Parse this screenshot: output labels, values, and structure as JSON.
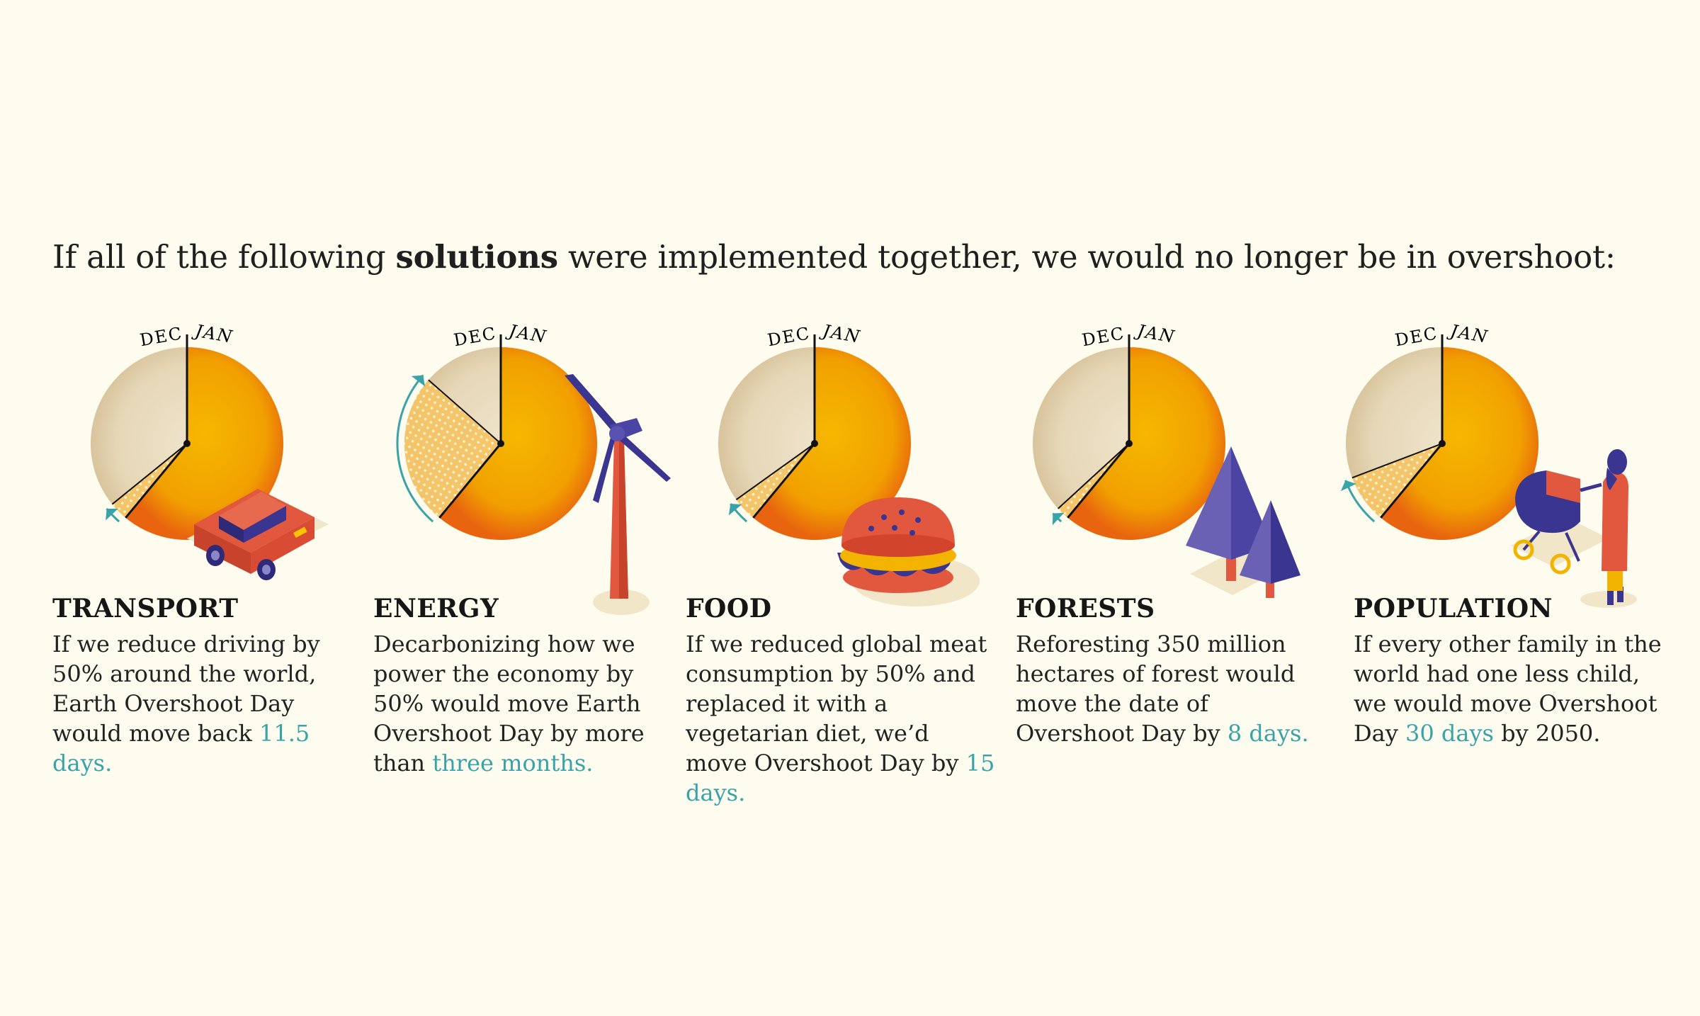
{
  "headline": {
    "before": "If all of the following ",
    "bold": "solutions",
    "after": " were implemented together, we would no longer be in overshoot:"
  },
  "colors": {
    "background": "#fdfcee",
    "sun_orange": "#f2a200",
    "sun_edge": "#e86a10",
    "beige": "#e9dcc0",
    "highlight_teal": "#3aa3a9",
    "coral": "#e2583e",
    "navy": "#3a3590",
    "purple": "#6a61b5"
  },
  "panels": [
    {
      "id": "transport",
      "icon": "car-icon",
      "month_left": "DEC",
      "month_right": "JAN",
      "title": "TRANSPORT",
      "body": "If we reduce driving by 50% around the world, Earth Overshoot Day would move back ",
      "highlight": "11.5 days.",
      "after": "",
      "days_gained": 11.5,
      "overshoot_fraction": 0.61
    },
    {
      "id": "energy",
      "icon": "wind-turbine-icon",
      "month_left": "DEC",
      "month_right": "JAN",
      "title": "ENERGY",
      "body": "Decarbonizing how we power the economy by 50% would move Earth Overshoot Day by more than ",
      "highlight": "three months.",
      "after": "",
      "days_gained": 93,
      "overshoot_fraction": 0.61
    },
    {
      "id": "food",
      "icon": "burger-icon",
      "month_left": "DEC",
      "month_right": "JAN",
      "title": "FOOD",
      "body": "If we reduced global meat consumption by 50% and replaced it with a vegetarian diet, we’d move Overshoot Day by ",
      "highlight": "15 days.",
      "after": "",
      "days_gained": 15,
      "overshoot_fraction": 0.61
    },
    {
      "id": "forests",
      "icon": "trees-icon",
      "month_left": "DEC",
      "month_right": "JAN",
      "title": "FORESTS",
      "body": "Reforesting 350 million hectares of forest would move the date of Overshoot Day by ",
      "highlight": "8 days.",
      "after": "",
      "days_gained": 8,
      "overshoot_fraction": 0.61
    },
    {
      "id": "population",
      "icon": "mother-with-stroller-icon",
      "month_left": "DEC",
      "month_right": "JAN",
      "title": "POPULATION",
      "body": "If every other family in the world had one less child, we would move Overshoot Day ",
      "highlight": "30 days",
      "after": " by 2050.",
      "days_gained": 30,
      "overshoot_fraction": 0.61
    }
  ]
}
